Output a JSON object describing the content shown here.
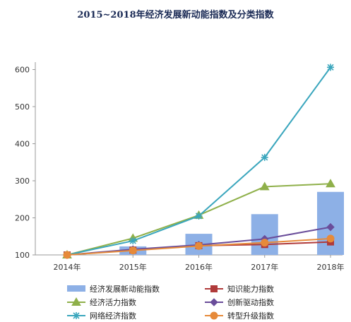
{
  "chart_data": {
    "type": "bar",
    "title": "2015~2018年经济发展新动能指数及分类指数",
    "xlabel": "",
    "ylabel": "",
    "categories": [
      "2014年",
      "2015年",
      "2016年",
      "2017年",
      "2018年"
    ],
    "ylim": [
      100,
      620
    ],
    "yticks": [
      100,
      200,
      300,
      400,
      500,
      600
    ],
    "grid": false,
    "legend_position": "bottom",
    "series": [
      {
        "name": "经济发展新动能指数",
        "kind": "bar",
        "color": "#8db0e6",
        "marker": "rect",
        "values": [
          100,
          123,
          157,
          210,
          270
        ]
      },
      {
        "name": "知识能力指数",
        "kind": "line",
        "color": "#b03a3a",
        "marker": "square",
        "values": [
          100,
          113,
          125,
          128,
          135
        ]
      },
      {
        "name": "经济活力指数",
        "kind": "line",
        "color": "#8fb04a",
        "marker": "triangle",
        "values": [
          100,
          145,
          207,
          284,
          292
        ]
      },
      {
        "name": "创新驱动指数",
        "kind": "line",
        "color": "#6a4d9a",
        "marker": "diamond",
        "values": [
          100,
          115,
          127,
          143,
          175
        ]
      },
      {
        "name": "网络经济指数",
        "kind": "line",
        "color": "#3aa6bd",
        "marker": "star",
        "values": [
          100,
          138,
          205,
          363,
          606
        ]
      },
      {
        "name": "转型升级指数",
        "kind": "line",
        "color": "#e68a3a",
        "marker": "circle",
        "values": [
          100,
          112,
          124,
          133,
          144
        ]
      }
    ]
  }
}
